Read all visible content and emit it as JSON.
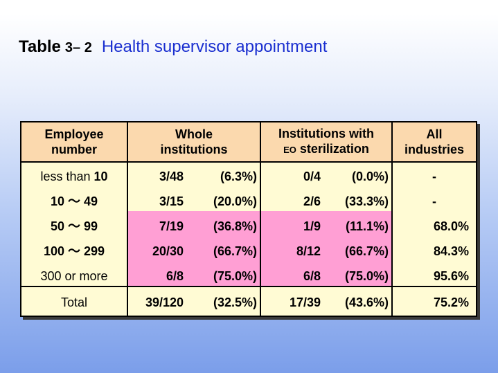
{
  "title": {
    "word": "Table",
    "number": "3– 2",
    "text": "Health supervisor appointment"
  },
  "headers": {
    "employee_line1": "Employee",
    "employee_line2": "number",
    "whole_line1": "Whole",
    "whole_line2": "institutions",
    "eo_line1": "Institutions with",
    "eo_prefix": "EO",
    "eo_line2": " sterilization",
    "all_line1": "All",
    "all_line2": "industries"
  },
  "rows": [
    {
      "label_pre": "less than ",
      "label_bold": "10",
      "whole_count": "3/48",
      "whole_pct": "(6.3%)",
      "eo_count": "0/4",
      "eo_pct": "(0.0%)",
      "all": "-"
    },
    {
      "label_pre": "",
      "label_bold": "10 ～ 49",
      "whole_count": "3/15",
      "whole_pct": "(20.0%)",
      "eo_count": "2/6",
      "eo_pct": "(33.3%)",
      "all": "-"
    },
    {
      "label_pre": "",
      "label_bold": "50 ～ 99",
      "whole_count": "7/19",
      "whole_pct": "(36.8%)",
      "eo_count": "1/9",
      "eo_pct": "(11.1%)",
      "all": "68.0%"
    },
    {
      "label_pre": "",
      "label_bold": "100 ～ 299",
      "whole_count": "20/30",
      "whole_pct": "(66.7%)",
      "eo_count": "8/12",
      "eo_pct": "(66.7%)",
      "all": "84.3%"
    },
    {
      "label_pre": "",
      "label_bold": "300 or more",
      "whole_count": "6/8",
      "whole_pct": "(75.0%)",
      "eo_count": "6/8",
      "eo_pct": "(75.0%)",
      "all": "95.6%"
    }
  ],
  "total": {
    "label": "Total",
    "whole_count": "39/120",
    "whole_pct": "(32.5%)",
    "eo_count": "17/39",
    "eo_pct": "(43.6%)",
    "all": "75.2%"
  },
  "colors": {
    "header_bg": "#fbd9ae",
    "table_bg": "#fffbd4",
    "highlight": "#ff9fd4",
    "title_text": "#1a2fd0"
  }
}
